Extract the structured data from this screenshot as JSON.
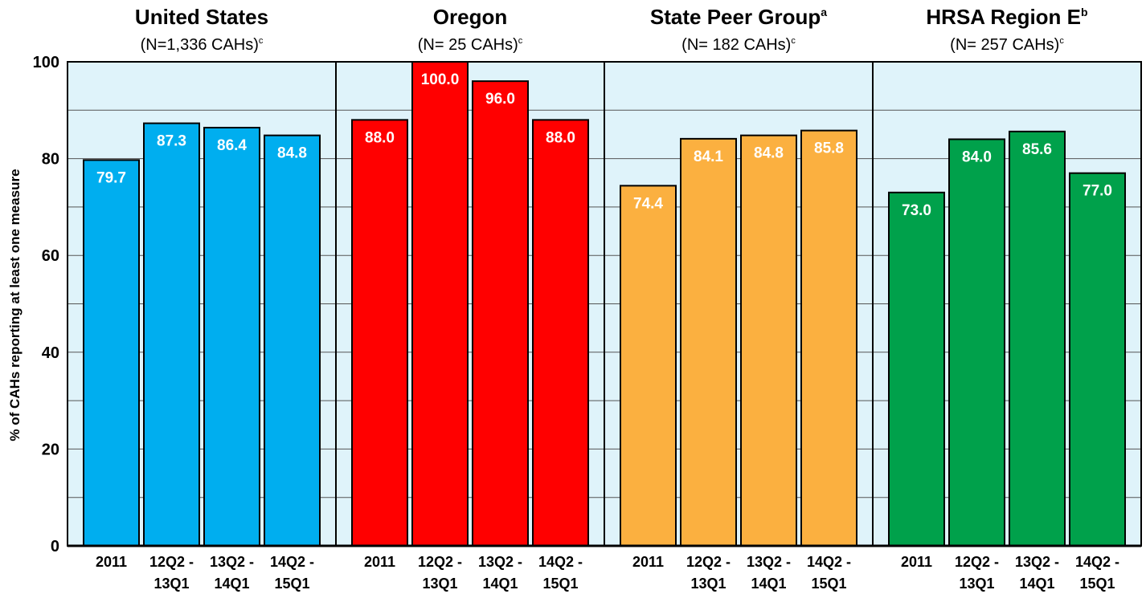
{
  "chart_data": {
    "type": "bar",
    "y_label": "% of CAHs reporting at least one measure",
    "ylim": [
      0,
      100
    ],
    "yticks": [
      0,
      20,
      40,
      60,
      80,
      100
    ],
    "minor_yticks": [
      10,
      30,
      50,
      70,
      90
    ],
    "grid": true,
    "categories": [
      [
        "2011"
      ],
      [
        "12Q2 -",
        "13Q1"
      ],
      [
        "13Q2 -",
        "14Q1"
      ],
      [
        "14Q2 -",
        "15Q1"
      ]
    ],
    "panels": [
      {
        "title": "United States",
        "subtitle": "(N=1,336 CAHs)",
        "subtitle_sup": "c",
        "color": "#00aeef",
        "values": [
          79.7,
          87.3,
          86.4,
          84.8
        ],
        "value_labels": [
          "79.7",
          "87.3",
          "86.4",
          "84.8"
        ]
      },
      {
        "title": "Oregon",
        "subtitle": "(N= 25 CAHs)",
        "subtitle_sup": "c",
        "color": "#ff0000",
        "values": [
          88,
          100,
          96,
          88
        ],
        "value_labels": [
          "88.0",
          "100.0",
          "96.0",
          "88.0"
        ]
      },
      {
        "title": "State Peer Group",
        "title_sup": "a",
        "subtitle": "(N= 182 CAHs)",
        "subtitle_sup": "c",
        "color": "#fbb040",
        "values": [
          74.4,
          84.1,
          84.8,
          85.8
        ],
        "value_labels": [
          "74.4",
          "84.1",
          "84.8",
          "85.8"
        ]
      },
      {
        "title": "HRSA Region E",
        "title_sup": "b",
        "subtitle": "(N= 257 CAHs)",
        "subtitle_sup": "c",
        "color": "#00a14b",
        "values": [
          73,
          84,
          85.6,
          77
        ],
        "value_labels": [
          "73.0",
          "84.0",
          "85.6",
          "77.0"
        ]
      }
    ]
  }
}
